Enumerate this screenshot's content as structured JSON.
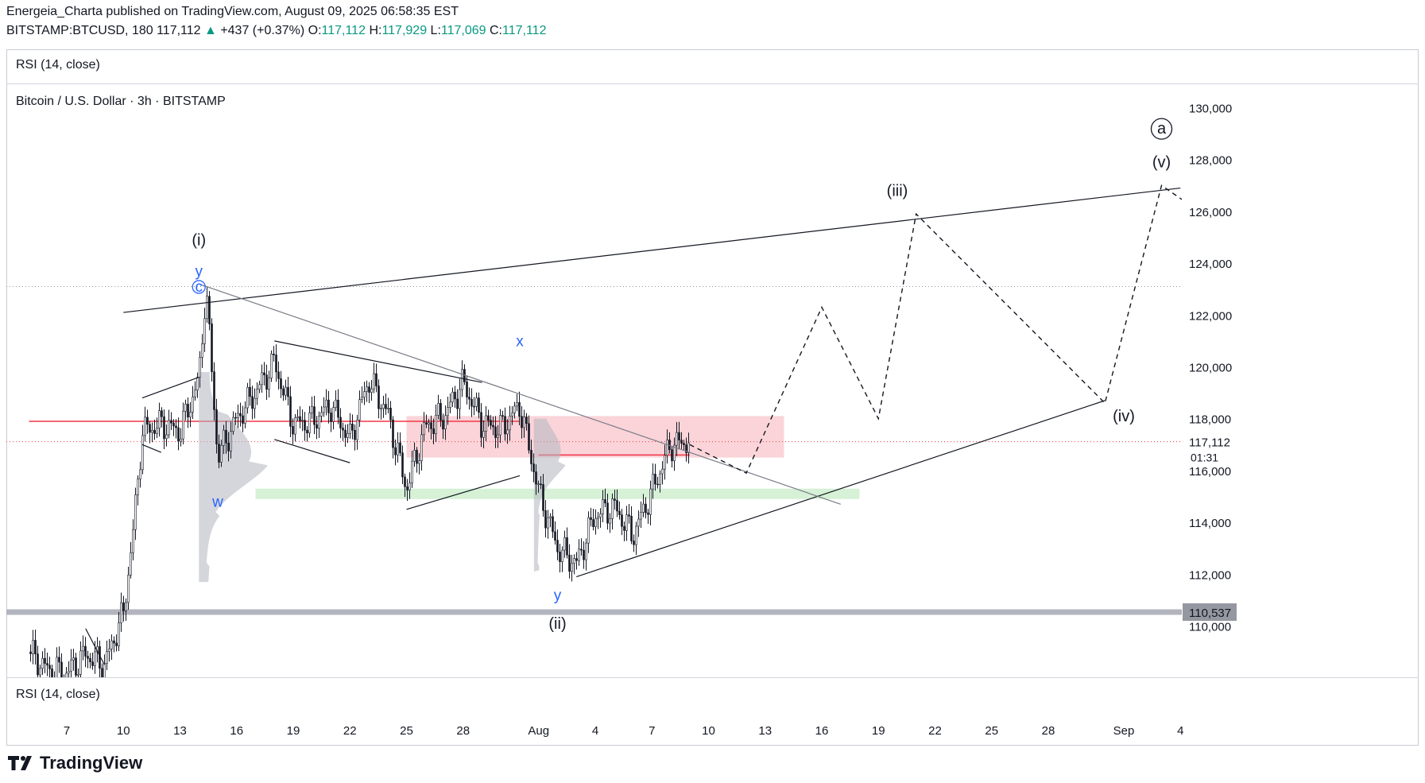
{
  "header": {
    "publisher": "Energeia_Charta published on TradingView.com, August 09, 2025 06:58:35 EST",
    "symbol_line": {
      "symbol": "BITSTAMP:BTCUSD, 180",
      "last": "117,112",
      "change": "+437 (+0.37%)",
      "open_label": "O:",
      "open": "117,112",
      "high_label": "H:",
      "high": "117,929",
      "low_label": "L:",
      "low": "117,069",
      "close_label": "C:",
      "close": "117,112"
    }
  },
  "panes": {
    "rsi_top_label": "RSI (14, close)",
    "rsi_bottom_label": "RSI (14, close)",
    "main_title": "Bitcoin / U.S. Dollar · 3h · BITSTAMP"
  },
  "brand": {
    "name": "TradingView"
  },
  "colors": {
    "up_text": "#089981",
    "resistance_line": "#f23645",
    "pink_zone": "#f9cdd2",
    "green_zone": "#cfeecf",
    "support_band": "#b2b5be",
    "wave_blue": "#2962ff"
  },
  "chart_data": {
    "type": "candlestick",
    "title": "Bitcoin / U.S. Dollar · 3h · BITSTAMP",
    "ylim": [
      108000,
      131000
    ],
    "y_ticks": [
      110000,
      112000,
      114000,
      116000,
      118000,
      120000,
      122000,
      124000,
      126000,
      128000,
      130000
    ],
    "y_tick_labels": [
      "110,000",
      "112,000",
      "114,000",
      "116,000",
      "118,000",
      "120,000",
      "122,000",
      "124,000",
      "126,000",
      "128,000",
      "130,000"
    ],
    "x_ticks": [
      {
        "date": "2025-07-07",
        "label": "7"
      },
      {
        "date": "2025-07-10",
        "label": "10"
      },
      {
        "date": "2025-07-13",
        "label": "13"
      },
      {
        "date": "2025-07-16",
        "label": "16"
      },
      {
        "date": "2025-07-19",
        "label": "19"
      },
      {
        "date": "2025-07-22",
        "label": "22"
      },
      {
        "date": "2025-07-25",
        "label": "25"
      },
      {
        "date": "2025-07-28",
        "label": "28"
      },
      {
        "date": "2025-08-01",
        "label": "Aug"
      },
      {
        "date": "2025-08-04",
        "label": "4"
      },
      {
        "date": "2025-08-07",
        "label": "7"
      },
      {
        "date": "2025-08-10",
        "label": "10"
      },
      {
        "date": "2025-08-13",
        "label": "13"
      },
      {
        "date": "2025-08-16",
        "label": "16"
      },
      {
        "date": "2025-08-19",
        "label": "19"
      },
      {
        "date": "2025-08-22",
        "label": "22"
      },
      {
        "date": "2025-08-25",
        "label": "25"
      },
      {
        "date": "2025-08-28",
        "label": "28"
      },
      {
        "date": "2025-09-01",
        "label": "Sep"
      },
      {
        "date": "2025-09-04",
        "label": "4"
      }
    ],
    "price_path": [
      {
        "date": "2025-07-05",
        "price": 109000
      },
      {
        "date": "2025-07-06",
        "price": 108300
      },
      {
        "date": "2025-07-07",
        "price": 108200
      },
      {
        "date": "2025-07-08",
        "price": 108900
      },
      {
        "date": "2025-07-09",
        "price": 108500
      },
      {
        "date": "2025-07-10",
        "price": 110500
      },
      {
        "date": "2025-07-10T12:00",
        "price": 113500
      },
      {
        "date": "2025-07-11",
        "price": 117500
      },
      {
        "date": "2025-07-12",
        "price": 117800
      },
      {
        "date": "2025-07-13",
        "price": 117500
      },
      {
        "date": "2025-07-14",
        "price": 119500
      },
      {
        "date": "2025-07-14T09:00",
        "price": 123100
      },
      {
        "date": "2025-07-15",
        "price": 116500
      },
      {
        "date": "2025-07-16",
        "price": 118000
      },
      {
        "date": "2025-07-17",
        "price": 119000
      },
      {
        "date": "2025-07-18",
        "price": 120200
      },
      {
        "date": "2025-07-19",
        "price": 117800
      },
      {
        "date": "2025-07-20",
        "price": 117900
      },
      {
        "date": "2025-07-21",
        "price": 118500
      },
      {
        "date": "2025-07-22",
        "price": 117200
      },
      {
        "date": "2025-07-23",
        "price": 119500
      },
      {
        "date": "2025-07-24",
        "price": 118200
      },
      {
        "date": "2025-07-25",
        "price": 115300
      },
      {
        "date": "2025-07-26",
        "price": 117700
      },
      {
        "date": "2025-07-27",
        "price": 118100
      },
      {
        "date": "2025-07-28",
        "price": 119400
      },
      {
        "date": "2025-07-29",
        "price": 117800
      },
      {
        "date": "2025-07-30",
        "price": 117600
      },
      {
        "date": "2025-07-31",
        "price": 118500
      },
      {
        "date": "2025-08-01",
        "price": 115200
      },
      {
        "date": "2025-08-02",
        "price": 113000
      },
      {
        "date": "2025-08-03",
        "price": 112400
      },
      {
        "date": "2025-08-04",
        "price": 114300
      },
      {
        "date": "2025-08-05",
        "price": 114600
      },
      {
        "date": "2025-08-06",
        "price": 113500
      },
      {
        "date": "2025-08-07",
        "price": 115200
      },
      {
        "date": "2025-08-08",
        "price": 117000
      },
      {
        "date": "2025-08-09",
        "price": 117112
      }
    ],
    "last_price": {
      "value": 117112,
      "label": "117,112",
      "countdown": "01:31"
    },
    "support_level": {
      "value": 110537,
      "label": "110,537"
    },
    "resistance_lines": [
      {
        "price": 117900,
        "from": "2025-07-05",
        "to": "2025-07-31"
      },
      {
        "price": 116600,
        "from": "2025-08-01",
        "to": "2025-08-09"
      }
    ],
    "zones": [
      {
        "name": "pink-zone",
        "from": "2025-07-25",
        "to": "2025-08-14",
        "low": 116500,
        "high": 118100
      },
      {
        "name": "green-zone",
        "from": "2025-07-17",
        "to": "2025-08-18",
        "low": 114900,
        "high": 115300
      }
    ],
    "trendlines": [
      {
        "name": "upper-channel",
        "from": {
          "date": "2025-07-10",
          "price": 122100
        },
        "to": {
          "date": "2025-09-04",
          "price": 126900
        }
      },
      {
        "name": "lower-channel",
        "from": {
          "date": "2025-08-03",
          "price": 111900
        },
        "to": {
          "date": "2025-08-31",
          "price": 118700
        }
      },
      {
        "name": "descending",
        "from": {
          "date": "2025-07-14",
          "price": 123200
        },
        "to": {
          "date": "2025-08-17",
          "price": 114700
        }
      },
      {
        "name": "wedge-top",
        "from": {
          "date": "2025-07-18",
          "price": 121000
        },
        "to": {
          "date": "2025-07-29",
          "price": 119400
        }
      },
      {
        "name": "wedge-bottom",
        "from": {
          "date": "2025-07-18",
          "price": 117200
        },
        "to": {
          "date": "2025-07-22",
          "price": 116300
        }
      },
      {
        "name": "range-base",
        "from": {
          "date": "2025-07-25",
          "price": 114500
        },
        "to": {
          "date": "2025-07-31",
          "price": 115800
        }
      },
      {
        "name": "early-down",
        "from": {
          "date": "2025-07-08",
          "price": 109900
        },
        "to": {
          "date": "2025-07-09",
          "price": 108500
        }
      },
      {
        "name": "flag-top",
        "from": {
          "date": "2025-07-11",
          "price": 118800
        },
        "to": {
          "date": "2025-07-14",
          "price": 119600
        }
      },
      {
        "name": "flag-bottom",
        "from": {
          "date": "2025-07-11",
          "price": 117000
        },
        "to": {
          "date": "2025-07-12",
          "price": 116700
        }
      }
    ],
    "projection": [
      {
        "date": "2025-08-09",
        "price": 117000
      },
      {
        "date": "2025-08-12",
        "price": 115900
      },
      {
        "date": "2025-08-16",
        "price": 122300
      },
      {
        "date": "2025-08-19",
        "price": 118000
      },
      {
        "date": "2025-08-21",
        "price": 125900
      },
      {
        "date": "2025-08-31",
        "price": 118600
      },
      {
        "date": "2025-09-03",
        "price": 127000
      },
      {
        "date": "2025-09-05",
        "price": 126000
      }
    ],
    "annotations": [
      {
        "text": "(i)",
        "date": "2025-07-14",
        "price": 124700,
        "color": "#131722"
      },
      {
        "text": "y",
        "date": "2025-07-14",
        "price": 123500,
        "color": "#2962ff"
      },
      {
        "text": "c",
        "date": "2025-07-14",
        "price": 122900,
        "color": "#2962ff",
        "circled": true
      },
      {
        "text": "w",
        "date": "2025-07-15",
        "price": 114600,
        "color": "#2962ff"
      },
      {
        "text": "x",
        "date": "2025-07-31",
        "price": 120800,
        "color": "#2962ff"
      },
      {
        "text": "y",
        "date": "2025-08-02",
        "price": 111000,
        "color": "#2962ff"
      },
      {
        "text": "(ii)",
        "date": "2025-08-02",
        "price": 109900,
        "color": "#131722"
      },
      {
        "text": "(iii)",
        "date": "2025-08-20",
        "price": 126600,
        "color": "#131722"
      },
      {
        "text": "(iv)",
        "date": "2025-09-01",
        "price": 117900,
        "color": "#131722"
      },
      {
        "text": "(v)",
        "date": "2025-09-03",
        "price": 127700,
        "color": "#131722"
      },
      {
        "text": "a",
        "date": "2025-09-03",
        "price": 129000,
        "color": "#131722",
        "circled": true
      }
    ]
  }
}
